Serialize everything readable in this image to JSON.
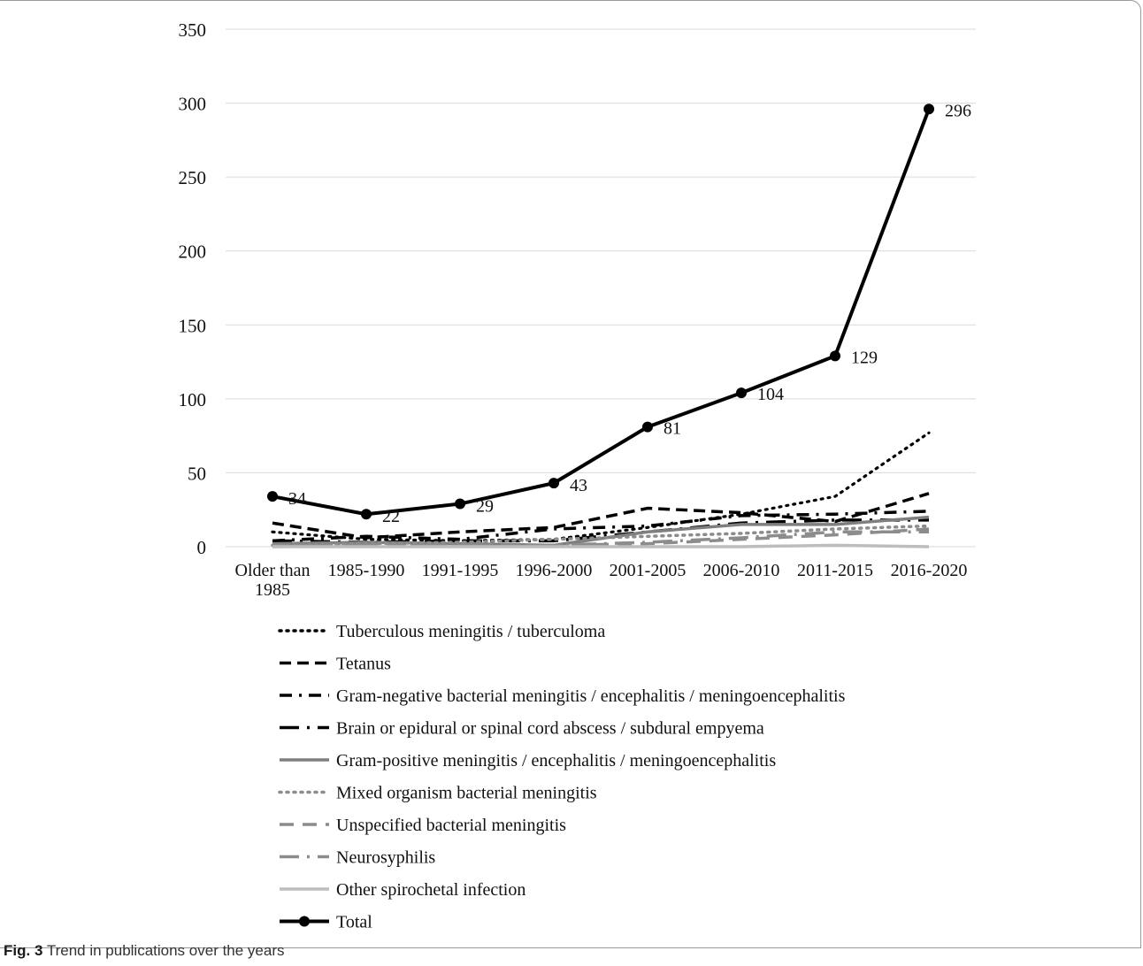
{
  "caption": {
    "label": "Fig. 3",
    "text": " Trend in publications over the years"
  },
  "chart_data": {
    "type": "line",
    "title": "",
    "xlabel": "",
    "ylabel": "",
    "ylim": [
      0,
      350
    ],
    "yticks": [
      0,
      50,
      100,
      150,
      200,
      250,
      300,
      350
    ],
    "grid": true,
    "legend_position": "bottom",
    "categories": [
      "Older than 1985",
      "1985-1990",
      "1991-1995",
      "1996-2000",
      "2001-2005",
      "2006-2010",
      "2011-2015",
      "2016-2020"
    ],
    "series": [
      {
        "name": "Tuberculous meningitis / tuberculoma",
        "values": [
          10,
          5,
          4,
          5,
          13,
          22,
          34,
          77
        ],
        "color": "#000000",
        "style": "dot"
      },
      {
        "name": "Tetanus",
        "values": [
          16,
          6,
          10,
          13,
          26,
          23,
          17,
          36
        ],
        "color": "#000000",
        "style": "dash"
      },
      {
        "name": "Gram-negative bacterial meningitis / encephalitis / meningoencephalitis",
        "values": [
          4,
          7,
          5,
          12,
          14,
          21,
          22,
          24
        ],
        "color": "#000000",
        "style": "dashdot"
      },
      {
        "name": "Brain or epidural or spinal cord abscess / subdural empyema",
        "values": [
          4,
          3,
          4,
          4,
          10,
          16,
          18,
          18
        ],
        "color": "#000000",
        "style": "longdashdot"
      },
      {
        "name": "Gram-positive meningitis / encephalitis / meningoencephalitis",
        "values": [
          2,
          3,
          2,
          1,
          10,
          15,
          15,
          20
        ],
        "color": "#7f7f7f",
        "style": "solid"
      },
      {
        "name": "Mixed organism bacterial meningitis",
        "values": [
          1,
          2,
          3,
          5,
          7,
          9,
          12,
          14
        ],
        "color": "#8c8c8c",
        "style": "dot"
      },
      {
        "name": "Unspecified bacterial meningitis",
        "values": [
          1,
          1,
          1,
          1,
          2,
          5,
          8,
          12
        ],
        "color": "#8c8c8c",
        "style": "longdash"
      },
      {
        "name": "Neurosyphilis",
        "values": [
          0,
          1,
          1,
          1,
          3,
          6,
          10,
          10
        ],
        "color": "#8c8c8c",
        "style": "longdashdot"
      },
      {
        "name": "Other spirochetal infection",
        "values": [
          0,
          0,
          0,
          0,
          0,
          0,
          1,
          0
        ],
        "color": "#bdbdbd",
        "style": "solid"
      },
      {
        "name": "Total",
        "values": [
          34,
          22,
          29,
          43,
          81,
          104,
          129,
          296
        ],
        "color": "#000000",
        "style": "solid-marker",
        "data_labels": [
          "34",
          "22",
          "29",
          "43",
          "81",
          "104",
          "129",
          "296"
        ]
      }
    ]
  }
}
